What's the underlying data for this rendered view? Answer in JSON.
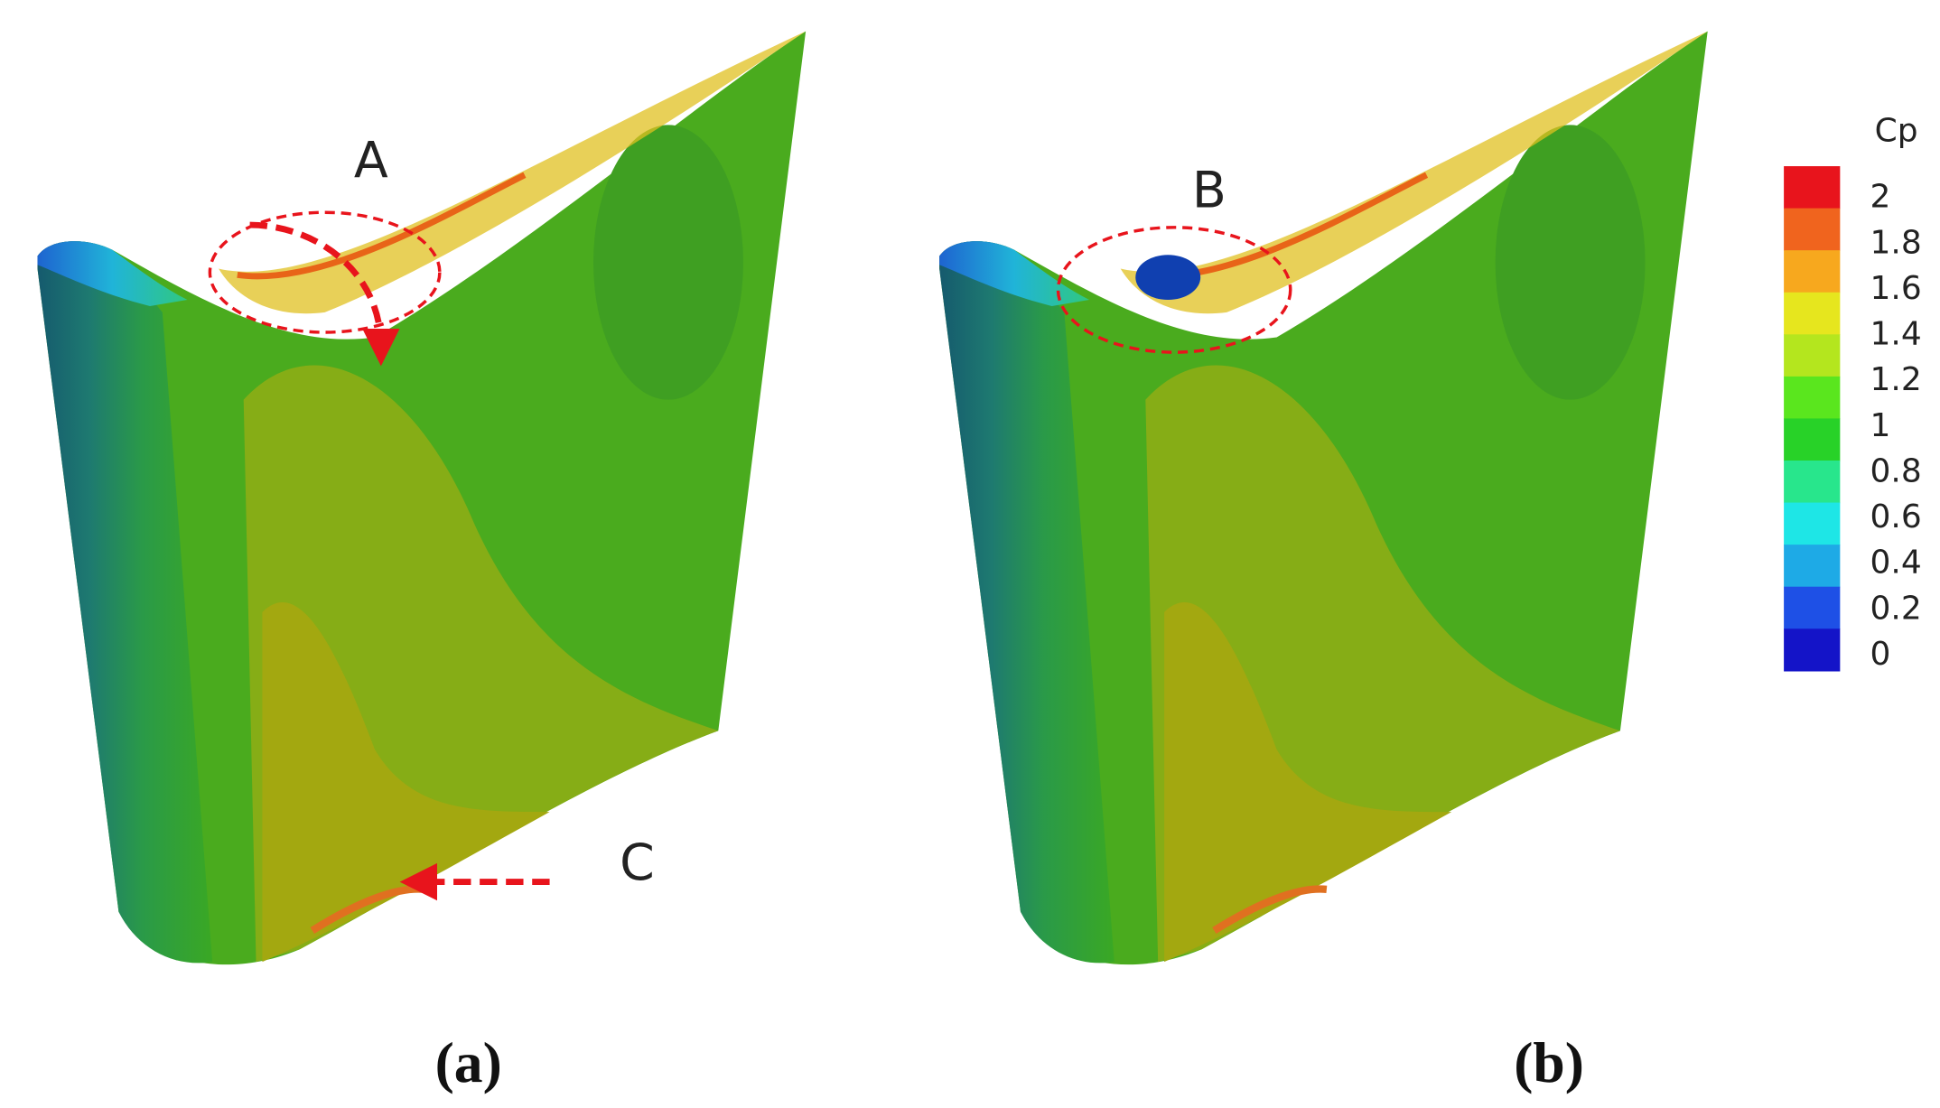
{
  "annotations": {
    "a": "A",
    "b": "B",
    "c": "C"
  },
  "captions": [
    "(a)",
    "(b)"
  ],
  "colorbar": {
    "title": "Cp",
    "ticks": [
      "2",
      "1.8",
      "1.6",
      "1.4",
      "1.2",
      "1",
      "0.8",
      "0.6",
      "0.4",
      "0.2",
      "0"
    ]
  }
}
